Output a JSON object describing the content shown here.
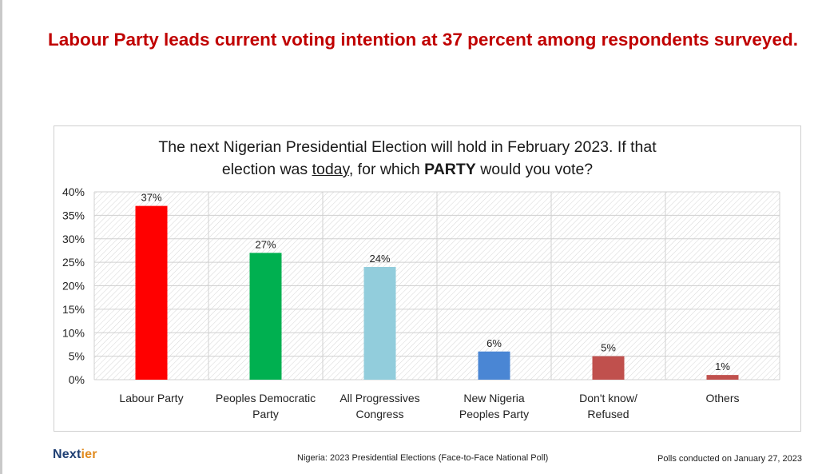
{
  "headline": "Labour Party leads current voting intention at 37 percent among respondents surveyed.",
  "question": {
    "line1": "The next Nigerian Presidential Election will hold in February 2023.  If that",
    "line2_pre": "election was ",
    "line2_underlined": "today",
    "line2_mid": ", for which ",
    "line2_bold": "PARTY",
    "line2_post": " would you vote?"
  },
  "chart_data": {
    "type": "bar",
    "title": "The next Nigerian Presidential Election will hold in February 2023.  If that election was today, for which PARTY would you vote?",
    "categories": [
      [
        "Labour Party"
      ],
      [
        "Peoples Democratic",
        "Party"
      ],
      [
        "All Progressives",
        "Congress"
      ],
      [
        "New Nigeria",
        "Peoples Party"
      ],
      [
        "Don't know/",
        "Refused"
      ],
      [
        "Others"
      ]
    ],
    "values": [
      37,
      27,
      24,
      6,
      5,
      1
    ],
    "data_labels": [
      "37%",
      "27%",
      "24%",
      "6%",
      "5%",
      "1%"
    ],
    "colors": [
      "#ff0000",
      "#00b050",
      "#92cddc",
      "#4a86d4",
      "#c0504d",
      "#c0504d"
    ],
    "ylim": [
      0,
      40
    ],
    "yticks": [
      0,
      5,
      10,
      15,
      20,
      25,
      30,
      35,
      40
    ],
    "ytick_labels": [
      "0%",
      "5%",
      "10%",
      "15%",
      "20%",
      "25%",
      "30%",
      "35%",
      "40%"
    ],
    "grid": true,
    "xlabel": "",
    "ylabel": ""
  },
  "footer": {
    "logo_part1": "Next",
    "logo_part2": "ier",
    "center": "Nigeria: 2023 Presidential Elections (Face-to-Face National Poll)",
    "right": "Polls conducted on January 27, 2023"
  }
}
